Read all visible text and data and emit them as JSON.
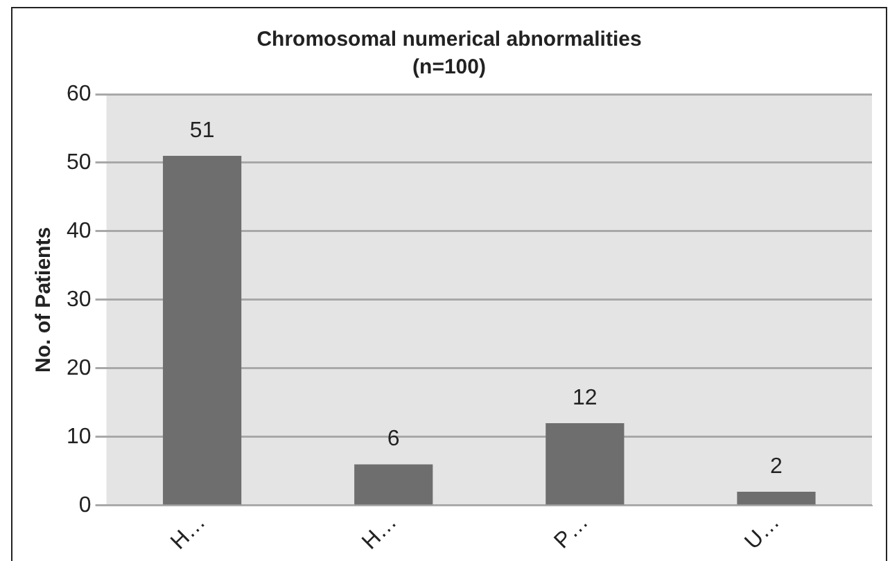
{
  "chart_data": {
    "type": "bar",
    "title": "Chromosomal numerical abnormalities",
    "subtitle": "(n=100)",
    "ylabel": "No. of Patients",
    "categories": [
      "H…",
      "H…",
      "P…",
      "U…"
    ],
    "values": [
      51,
      6,
      12,
      2
    ],
    "color": "#6e6e6e",
    "ylim": [
      0,
      60
    ],
    "yticks": [
      0,
      10,
      20,
      30,
      40,
      50,
      60
    ],
    "grid": "y",
    "data_labels": true,
    "legend": false
  }
}
